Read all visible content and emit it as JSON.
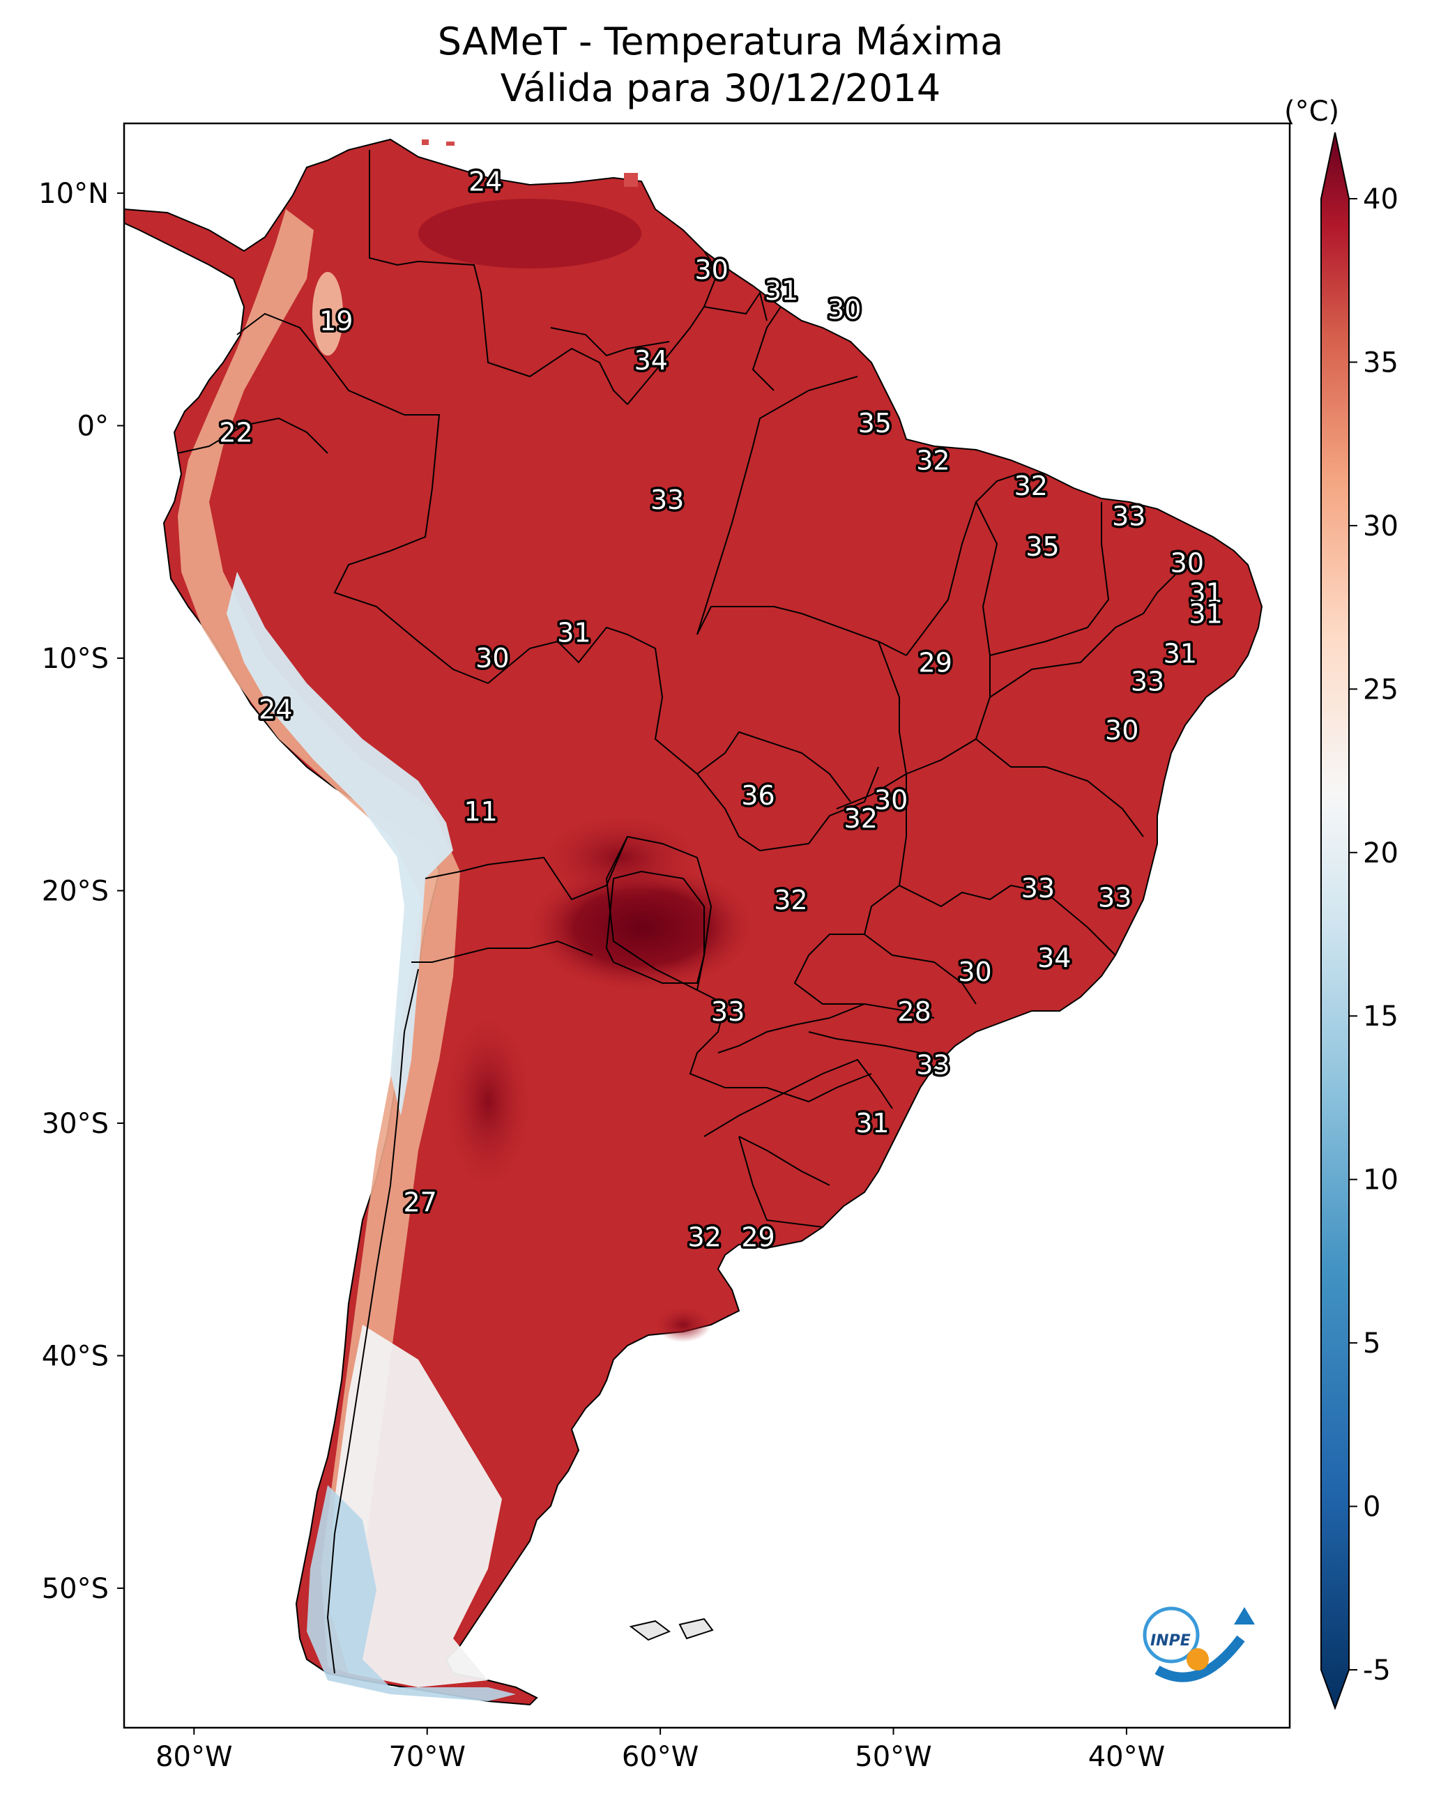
{
  "title": {
    "line1": "SAMeT - Temperatura Máxima",
    "line2": "Válida para 30/12/2014"
  },
  "map": {
    "lon_ticks": [
      "80°W",
      "70°W",
      "60°W",
      "50°W",
      "40°W"
    ],
    "lat_ticks": [
      "10°N",
      "0°",
      "10°S",
      "20°S",
      "30°S",
      "40°S",
      "50°S"
    ],
    "lon_range": [
      -83,
      -33
    ],
    "lat_range": [
      -56,
      13
    ],
    "labels": [
      {
        "text": "24",
        "lon": -67.5,
        "lat": 10.5
      },
      {
        "text": "30",
        "lon": -57.8,
        "lat": 6.7
      },
      {
        "text": "31",
        "lon": -54.8,
        "lat": 5.8
      },
      {
        "text": "30",
        "lon": -52.1,
        "lat": 5.0
      },
      {
        "text": "19",
        "lon": -73.9,
        "lat": 4.5
      },
      {
        "text": "34",
        "lon": -60.4,
        "lat": 2.8
      },
      {
        "text": "35",
        "lon": -50.8,
        "lat": 0.1
      },
      {
        "text": "22",
        "lon": -78.2,
        "lat": -0.3
      },
      {
        "text": "32",
        "lon": -48.3,
        "lat": -1.5
      },
      {
        "text": "32",
        "lon": -44.1,
        "lat": -2.6
      },
      {
        "text": "33",
        "lon": -59.7,
        "lat": -3.2
      },
      {
        "text": "33",
        "lon": -39.9,
        "lat": -3.9
      },
      {
        "text": "35",
        "lon": -43.6,
        "lat": -5.2
      },
      {
        "text": "30",
        "lon": -37.4,
        "lat": -5.9
      },
      {
        "text": "31",
        "lon": -36.6,
        "lat": -7.2
      },
      {
        "text": "31",
        "lon": -36.6,
        "lat": -8.1
      },
      {
        "text": "31",
        "lon": -63.7,
        "lat": -8.9
      },
      {
        "text": "31",
        "lon": -37.7,
        "lat": -9.8
      },
      {
        "text": "30",
        "lon": -67.2,
        "lat": -10.0
      },
      {
        "text": "29",
        "lon": -48.2,
        "lat": -10.2
      },
      {
        "text": "33",
        "lon": -39.1,
        "lat": -11.0
      },
      {
        "text": "24",
        "lon": -76.5,
        "lat": -12.2
      },
      {
        "text": "30",
        "lon": -40.2,
        "lat": -13.1
      },
      {
        "text": "36",
        "lon": -55.8,
        "lat": -15.9
      },
      {
        "text": "30",
        "lon": -50.1,
        "lat": -16.1
      },
      {
        "text": "32",
        "lon": -51.4,
        "lat": -16.9
      },
      {
        "text": "11",
        "lon": -67.7,
        "lat": -16.6
      },
      {
        "text": "33",
        "lon": -43.8,
        "lat": -19.9
      },
      {
        "text": "32",
        "lon": -54.4,
        "lat": -20.4
      },
      {
        "text": "33",
        "lon": -40.5,
        "lat": -20.3
      },
      {
        "text": "34",
        "lon": -43.1,
        "lat": -22.9
      },
      {
        "text": "30",
        "lon": -46.5,
        "lat": -23.5
      },
      {
        "text": "33",
        "lon": -57.1,
        "lat": -25.2
      },
      {
        "text": "28",
        "lon": -49.1,
        "lat": -25.2
      },
      {
        "text": "33",
        "lon": -48.3,
        "lat": -27.5
      },
      {
        "text": "31",
        "lon": -50.9,
        "lat": -30.0
      },
      {
        "text": "27",
        "lon": -70.3,
        "lat": -33.4
      },
      {
        "text": "32",
        "lon": -58.1,
        "lat": -34.9
      },
      {
        "text": "29",
        "lon": -55.8,
        "lat": -34.9
      }
    ]
  },
  "colorbar": {
    "unit": "(°C)",
    "ticks": [
      "-5",
      "0",
      "5",
      "10",
      "15",
      "20",
      "25",
      "30",
      "35",
      "40"
    ],
    "min": -7,
    "max": 42
  },
  "logo": {
    "text": "INPE"
  },
  "colors": {
    "hot": "#c0292d",
    "very_hot": "#8a0c1c",
    "warm": "#e06b55",
    "mild": "#f6c4ad",
    "cool": "#f5f5f5",
    "cold": "#a9cfe3",
    "coldest": "#2166ac"
  }
}
